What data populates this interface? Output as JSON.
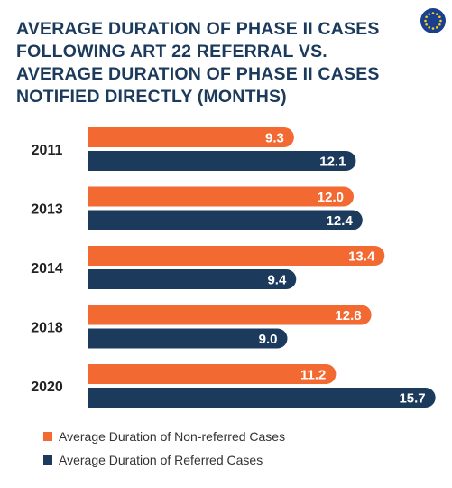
{
  "title_lines": [
    "AVERAGE DURATION OF PHASE II CASES",
    "FOLLOWING ART 22 REFERRAL VS.",
    "AVERAGE DURATION OF PHASE II CASES",
    "NOTIFIED DIRECTLY (MONTHS)"
  ],
  "logo": {
    "icon": "eu-flag-icon",
    "background": "#1b3f8f",
    "stars": "#f5d117"
  },
  "colors": {
    "non_referred": "#f26a32",
    "referred": "#1b3a5c",
    "title": "#1b3a5c"
  },
  "chart_data": {
    "type": "bar",
    "orientation": "horizontal",
    "categories": [
      "2011",
      "2013",
      "2014",
      "2018",
      "2020"
    ],
    "series": [
      {
        "name": "Average Duration of Non-referred Cases",
        "color": "#f26a32",
        "values": [
          9.3,
          12.0,
          13.4,
          12.8,
          11.2
        ],
        "labels": [
          "9.3",
          "12.0",
          "13.4",
          "12.8",
          "11.2"
        ]
      },
      {
        "name": "Average Duration of Referred Cases",
        "color": "#1b3a5c",
        "values": [
          12.1,
          12.4,
          9.4,
          9.0,
          15.7
        ],
        "labels": [
          "12.1",
          "12.4",
          "9.4",
          "9.0",
          "15.7"
        ]
      }
    ],
    "xlabel": "",
    "ylabel": "",
    "xlim": [
      0,
      16
    ],
    "grid": false,
    "data_labels": true,
    "legend": "bottom"
  }
}
